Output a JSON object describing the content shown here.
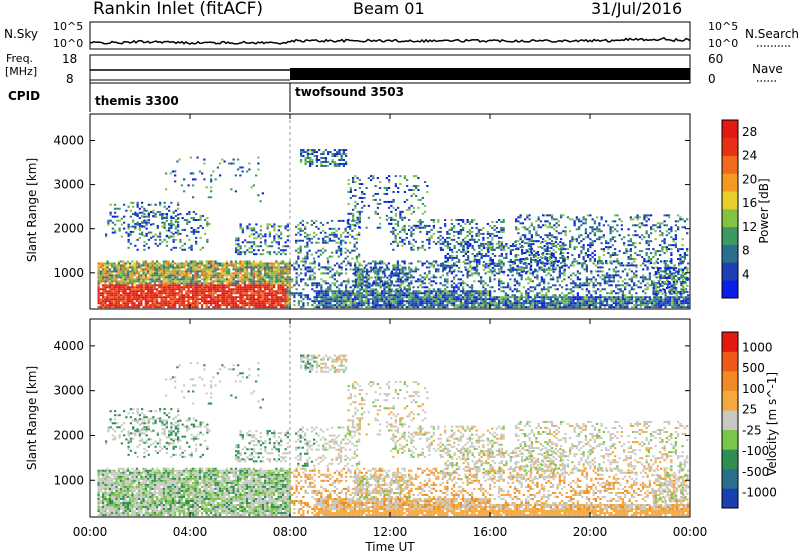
{
  "header": {
    "station_title": "Rankin Inlet (fitACF)",
    "beam_label": "Beam 01",
    "date_label": "31/Jul/2016"
  },
  "top_strips": {
    "nsky": {
      "label": "N.Sky",
      "tick_top": "10^5",
      "tick_bottom": "10^0"
    },
    "nsearch": {
      "label": "N.Search",
      "tick_top": "10^5",
      "tick_bottom": "10^0"
    },
    "freq": {
      "label_line1": "Freq.",
      "label_line2": "[MHz]",
      "tick_top": "18",
      "tick_bottom": "8"
    },
    "nave": {
      "label": "Nave",
      "tick_top": "60",
      "tick_bottom": "0"
    },
    "cpid": {
      "label": "CPID",
      "modes": [
        {
          "name": "themis 3300",
          "start_hour": 0
        },
        {
          "name": "twofsound 3503",
          "start_hour": 8
        }
      ]
    }
  },
  "chart_data": [
    {
      "type": "heatmap",
      "title": "",
      "xlabel": "Time UT",
      "ylabel": "Slant Range [km]",
      "xlim": [
        0,
        24
      ],
      "ylim": [
        180,
        4600
      ],
      "x_ticks": [
        "00:00",
        "04:00",
        "08:00",
        "12:00",
        "16:00",
        "20:00",
        "00:00"
      ],
      "y_ticks": [
        "1000",
        "2000",
        "3000",
        "4000"
      ],
      "colorbar": {
        "label": "Power [dB]",
        "ticks": [
          "4",
          "8",
          "12",
          "16",
          "20",
          "24",
          "28"
        ],
        "range": [
          0,
          30
        ],
        "colors": [
          "#0a1fe6",
          "#1e3fb8",
          "#2c6e8e",
          "#3a9a62",
          "#84c244",
          "#e6cf2c",
          "#f39a20",
          "#ef6a1a",
          "#e83015",
          "#e21a12"
        ]
      }
    },
    {
      "type": "heatmap",
      "title": "",
      "xlabel": "Time UT",
      "ylabel": "Slant Range [km]",
      "xlim": [
        0,
        24
      ],
      "ylim": [
        180,
        4600
      ],
      "x_ticks": [
        "00:00",
        "04:00",
        "08:00",
        "12:00",
        "16:00",
        "20:00",
        "00:00"
      ],
      "y_ticks": [
        "1000",
        "2000",
        "3000",
        "4000"
      ],
      "colorbar": {
        "label": "Velocity [m s^-1]",
        "ticks": [
          "1000",
          "500",
          "100",
          "25",
          "-25",
          "-100",
          "-500",
          "-1000"
        ],
        "range": [
          -1000,
          1000
        ],
        "colors": [
          "#1a3fb0",
          "#2c6e8e",
          "#2f8f53",
          "#7ac64a",
          "#c9c9c4",
          "#f5a83c",
          "#f08a22",
          "#ef5a1a",
          "#e21a12"
        ]
      }
    }
  ],
  "x_axis": {
    "ticks": [
      "00:00",
      "04:00",
      "08:00",
      "12:00",
      "16:00",
      "20:00",
      "00:00"
    ],
    "label": "Time UT"
  }
}
